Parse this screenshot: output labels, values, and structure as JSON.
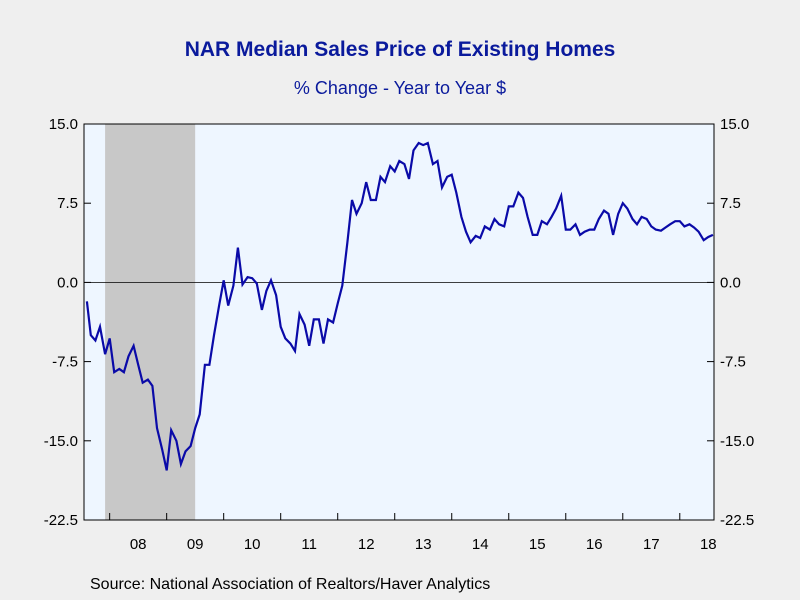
{
  "chart_data": {
    "type": "line",
    "title": "NAR Median Sales Price of Existing Homes",
    "subtitle": "% Change - Year to Year     $",
    "source": "Source:  National Association of Realtors/Haver Analytics",
    "ylim": [
      -22.5,
      15.0
    ],
    "y_ticks": [
      "15.0",
      "7.5",
      "0.0",
      "-7.5",
      "-15.0",
      "-22.5"
    ],
    "y_tick_values": [
      15.0,
      7.5,
      0.0,
      -7.5,
      -15.0,
      -22.5
    ],
    "x_range": [
      2007.55,
      2018.6
    ],
    "x_tick_labels": [
      "08",
      "09",
      "10",
      "11",
      "12",
      "13",
      "14",
      "15",
      "16",
      "17",
      "18"
    ],
    "x_tick_centers": [
      2008.5,
      2009.5,
      2010.5,
      2011.5,
      2012.5,
      2013.5,
      2014.5,
      2015.5,
      2016.5,
      2017.5,
      2018.5
    ],
    "recession": [
      2007.92,
      2009.5
    ],
    "colors": {
      "line": "#0a0aa8",
      "recession": "#c8c8c8",
      "plot_bg": "#eef6ff",
      "text": "#0a1a9c"
    },
    "series": [
      {
        "x": [
          2007.6,
          2007.67,
          2007.75,
          2007.83,
          2007.92,
          2008.0,
          2008.08,
          2008.17,
          2008.25,
          2008.33,
          2008.42,
          2008.5,
          2008.58,
          2008.67,
          2008.75,
          2008.83,
          2008.92,
          2009.0,
          2009.08,
          2009.17,
          2009.25,
          2009.33,
          2009.42,
          2009.5,
          2009.58,
          2009.67,
          2009.75,
          2009.83,
          2009.92,
          2010.0,
          2010.08,
          2010.17,
          2010.25,
          2010.33,
          2010.42,
          2010.5,
          2010.58,
          2010.67,
          2010.75,
          2010.83,
          2010.92,
          2011.0,
          2011.08,
          2011.17,
          2011.25,
          2011.33,
          2011.42,
          2011.5,
          2011.58,
          2011.67,
          2011.75,
          2011.83,
          2011.92,
          2012.0,
          2012.08,
          2012.17,
          2012.25,
          2012.33,
          2012.42,
          2012.5,
          2012.58,
          2012.67,
          2012.75,
          2012.83,
          2012.92,
          2013.0,
          2013.08,
          2013.17,
          2013.25,
          2013.33,
          2013.42,
          2013.5,
          2013.58,
          2013.67,
          2013.75,
          2013.83,
          2013.92,
          2014.0,
          2014.08,
          2014.17,
          2014.25,
          2014.33,
          2014.42,
          2014.5,
          2014.58,
          2014.67,
          2014.75,
          2014.83,
          2014.92,
          2015.0,
          2015.08,
          2015.17,
          2015.25,
          2015.33,
          2015.42,
          2015.5,
          2015.58,
          2015.67,
          2015.75,
          2015.83,
          2015.92,
          2016.0,
          2016.08,
          2016.17,
          2016.25,
          2016.33,
          2016.42,
          2016.5,
          2016.58,
          2016.67,
          2016.75,
          2016.83,
          2016.92,
          2017.0,
          2017.08,
          2017.17,
          2017.25,
          2017.33,
          2017.42,
          2017.5,
          2017.58,
          2017.67,
          2017.75,
          2017.83,
          2017.92,
          2018.0,
          2018.08,
          2018.17,
          2018.25,
          2018.33,
          2018.42,
          2018.5,
          2018.58
        ],
        "values": [
          -1.8,
          -5.0,
          -5.5,
          -4.2,
          -6.8,
          -5.3,
          -8.5,
          -8.2,
          -8.5,
          -7.0,
          -6.0,
          -7.8,
          -9.5,
          -9.2,
          -9.8,
          -13.8,
          -15.8,
          -17.8,
          -14.0,
          -15.0,
          -17.2,
          -16.0,
          -15.5,
          -13.8,
          -12.5,
          -7.8,
          -7.8,
          -5.0,
          -2.2,
          0.2,
          -2.2,
          -0.3,
          3.3,
          -0.2,
          0.5,
          0.4,
          -0.1,
          -2.6,
          -0.8,
          0.2,
          -1.2,
          -4.2,
          -5.3,
          -5.8,
          -6.5,
          -3.0,
          -4.0,
          -6.0,
          -3.5,
          -3.5,
          -5.8,
          -3.5,
          -3.8,
          -2.0,
          -0.3,
          3.8,
          7.8,
          6.5,
          7.5,
          9.5,
          7.8,
          7.8,
          10.0,
          9.5,
          11.0,
          10.5,
          11.5,
          11.2,
          9.8,
          12.5,
          13.2,
          13.0,
          13.2,
          11.2,
          11.5,
          9.0,
          10.0,
          10.2,
          8.5,
          6.2,
          4.8,
          3.8,
          4.4,
          4.2,
          5.3,
          5.0,
          6.0,
          5.5,
          5.3,
          7.2,
          7.2,
          8.5,
          8.0,
          6.2,
          4.5,
          4.5,
          5.8,
          5.5,
          6.2,
          7.0,
          8.2,
          5.0,
          5.0,
          5.5,
          4.5,
          4.8,
          5.0,
          5.0,
          6.0,
          6.8,
          6.5,
          4.5,
          6.5,
          7.5,
          7.0,
          6.0,
          5.5,
          6.2,
          6.0,
          5.3,
          5.0,
          4.9,
          5.2,
          5.5,
          5.8,
          5.8,
          5.3,
          5.5,
          5.2,
          4.8,
          4.0,
          4.3,
          4.5
        ]
      }
    ]
  }
}
